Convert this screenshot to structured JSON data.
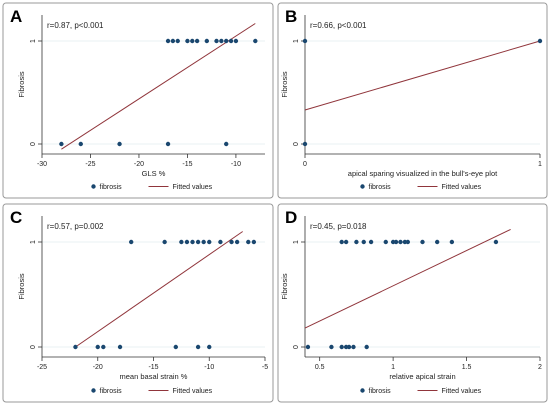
{
  "colors": {
    "points": "#1a476f",
    "fit_line": "#90353b",
    "grid": "#eaf2f3",
    "panel_border": "#999999",
    "plot_bg": "#ffffff"
  },
  "chart_data": [
    {
      "panel": "A",
      "type": "scatter",
      "annotation": "r=0.87, p<0.001",
      "xlabel": "GLS %",
      "ylabel": "Fibrosis",
      "xlim": [
        -30,
        -7
      ],
      "ylim": [
        0,
        1
      ],
      "x_ticks": [
        -30,
        -25,
        -20,
        -15,
        -10
      ],
      "y_ticks": [
        0,
        1
      ],
      "grid": true,
      "legend_position": "bottom",
      "legend": [
        "fibrosis",
        "Fitted values"
      ],
      "series": [
        {
          "name": "fibrosis",
          "points": [
            [
              -28,
              0
            ],
            [
              -26,
              0
            ],
            [
              -22,
              0
            ],
            [
              -17,
              0
            ],
            [
              -11,
              0
            ],
            [
              -17,
              1
            ],
            [
              -16.5,
              1
            ],
            [
              -16,
              1
            ],
            [
              -15,
              1
            ],
            [
              -14.5,
              1
            ],
            [
              -14,
              1
            ],
            [
              -13,
              1
            ],
            [
              -12,
              1
            ],
            [
              -11.5,
              1
            ],
            [
              -11,
              1
            ],
            [
              -10.5,
              1
            ],
            [
              -10,
              1
            ],
            [
              -8,
              1
            ]
          ]
        },
        {
          "name": "Fitted values",
          "line": [
            [
              -28,
              -0.05
            ],
            [
              -8,
              1.17
            ]
          ]
        }
      ]
    },
    {
      "panel": "B",
      "type": "scatter",
      "annotation": "r=0.66, p<0.001",
      "xlabel": "apical sparing visualized in the bull's-eye plot",
      "ylabel": "Fibrosis",
      "xlim": [
        0,
        1
      ],
      "ylim": [
        0,
        1
      ],
      "x_ticks": [
        0,
        1
      ],
      "y_ticks": [
        0,
        1
      ],
      "grid": true,
      "legend_position": "bottom",
      "legend": [
        "fibrosis",
        "Fitted values"
      ],
      "series": [
        {
          "name": "fibrosis",
          "points": [
            [
              0,
              0
            ],
            [
              0,
              1
            ],
            [
              1,
              1
            ]
          ]
        },
        {
          "name": "Fitted values",
          "line": [
            [
              0,
              0.33
            ],
            [
              1,
              1
            ]
          ]
        }
      ]
    },
    {
      "panel": "C",
      "type": "scatter",
      "annotation": "r=0.57, p=0.002",
      "xlabel": "mean basal strain %",
      "ylabel": "Fibrosis",
      "xlim": [
        -25,
        -5
      ],
      "ylim": [
        0,
        1
      ],
      "x_ticks": [
        -25,
        -20,
        -15,
        -10,
        -5
      ],
      "y_ticks": [
        0,
        1
      ],
      "grid": true,
      "legend_position": "bottom",
      "legend": [
        "fibrosis",
        "Fitted values"
      ],
      "series": [
        {
          "name": "fibrosis",
          "points": [
            [
              -22,
              0
            ],
            [
              -20,
              0
            ],
            [
              -19.5,
              0
            ],
            [
              -18,
              0
            ],
            [
              -13,
              0
            ],
            [
              -11,
              0
            ],
            [
              -10,
              0
            ],
            [
              -17,
              1
            ],
            [
              -14,
              1
            ],
            [
              -12.5,
              1
            ],
            [
              -12,
              1
            ],
            [
              -11.5,
              1
            ],
            [
              -11,
              1
            ],
            [
              -10.5,
              1
            ],
            [
              -10,
              1
            ],
            [
              -9,
              1
            ],
            [
              -8,
              1
            ],
            [
              -7.5,
              1
            ],
            [
              -6.5,
              1
            ],
            [
              -6,
              1
            ]
          ]
        },
        {
          "name": "Fitted values",
          "line": [
            [
              -22,
              0
            ],
            [
              -7,
              1.1
            ]
          ]
        }
      ]
    },
    {
      "panel": "D",
      "type": "scatter",
      "annotation": "r=0.45, p=0.018",
      "xlabel": "relative apical strain",
      "ylabel": "Fibrosis",
      "xlim": [
        0.4,
        2
      ],
      "ylim": [
        0,
        1
      ],
      "x_ticks": [
        0.5,
        1,
        1.5,
        2
      ],
      "y_ticks": [
        0,
        1
      ],
      "grid": true,
      "legend_position": "bottom",
      "legend": [
        "fibrosis",
        "Fitted values"
      ],
      "series": [
        {
          "name": "fibrosis",
          "points": [
            [
              0.42,
              0
            ],
            [
              0.58,
              0
            ],
            [
              0.65,
              0
            ],
            [
              0.68,
              0
            ],
            [
              0.7,
              0
            ],
            [
              0.73,
              0
            ],
            [
              0.82,
              0
            ],
            [
              0.65,
              1
            ],
            [
              0.68,
              1
            ],
            [
              0.75,
              1
            ],
            [
              0.8,
              1
            ],
            [
              0.85,
              1
            ],
            [
              0.95,
              1
            ],
            [
              1.0,
              1
            ],
            [
              1.02,
              1
            ],
            [
              1.05,
              1
            ],
            [
              1.08,
              1
            ],
            [
              1.1,
              1
            ],
            [
              1.2,
              1
            ],
            [
              1.3,
              1
            ],
            [
              1.4,
              1
            ],
            [
              1.7,
              1
            ]
          ]
        },
        {
          "name": "Fitted values",
          "line": [
            [
              0.4,
              0.18
            ],
            [
              1.8,
              1.12
            ]
          ]
        }
      ]
    }
  ]
}
